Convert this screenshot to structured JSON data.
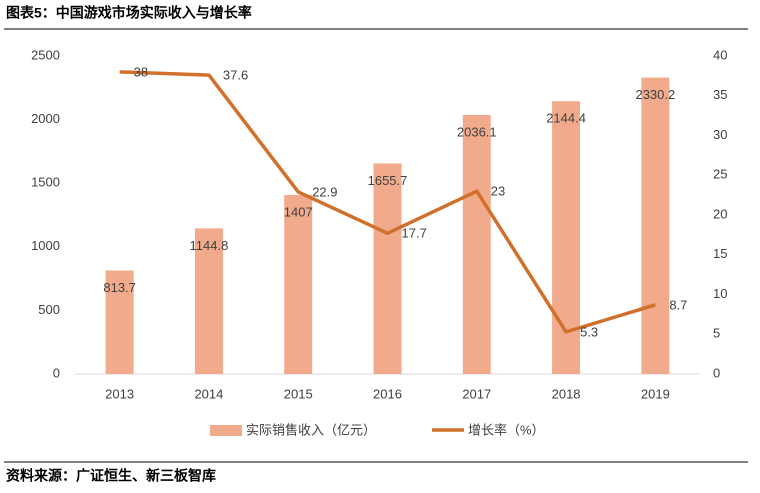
{
  "header": {
    "title": "图表5：中国游戏市场实际收入与增长率"
  },
  "chart_data": {
    "type": "bar-line",
    "categories": [
      "2013",
      "2014",
      "2015",
      "2016",
      "2017",
      "2018",
      "2019"
    ],
    "series": [
      {
        "name": "实际销售收入（亿元）",
        "type": "bar",
        "color": "#f1ab8c",
        "values": [
          813.7,
          1144.8,
          1407,
          1655.7,
          2036.1,
          2144.4,
          2330.2
        ]
      },
      {
        "name": "增长率（%）",
        "type": "line",
        "axis": "y2",
        "color": "#d0702b",
        "values": [
          38,
          37.6,
          22.9,
          17.7,
          23,
          5.3,
          8.7
        ]
      }
    ],
    "ylim": [
      0,
      2500
    ],
    "yticks": [
      0,
      500,
      1000,
      1500,
      2000,
      2500
    ],
    "y2lim": [
      0,
      40
    ],
    "y2ticks": [
      0,
      5,
      10,
      15,
      20,
      25,
      30,
      35,
      40
    ],
    "grid": false,
    "legend": "bottom"
  },
  "footer": {
    "source": "资料来源：广证恒生、新三板智库"
  }
}
